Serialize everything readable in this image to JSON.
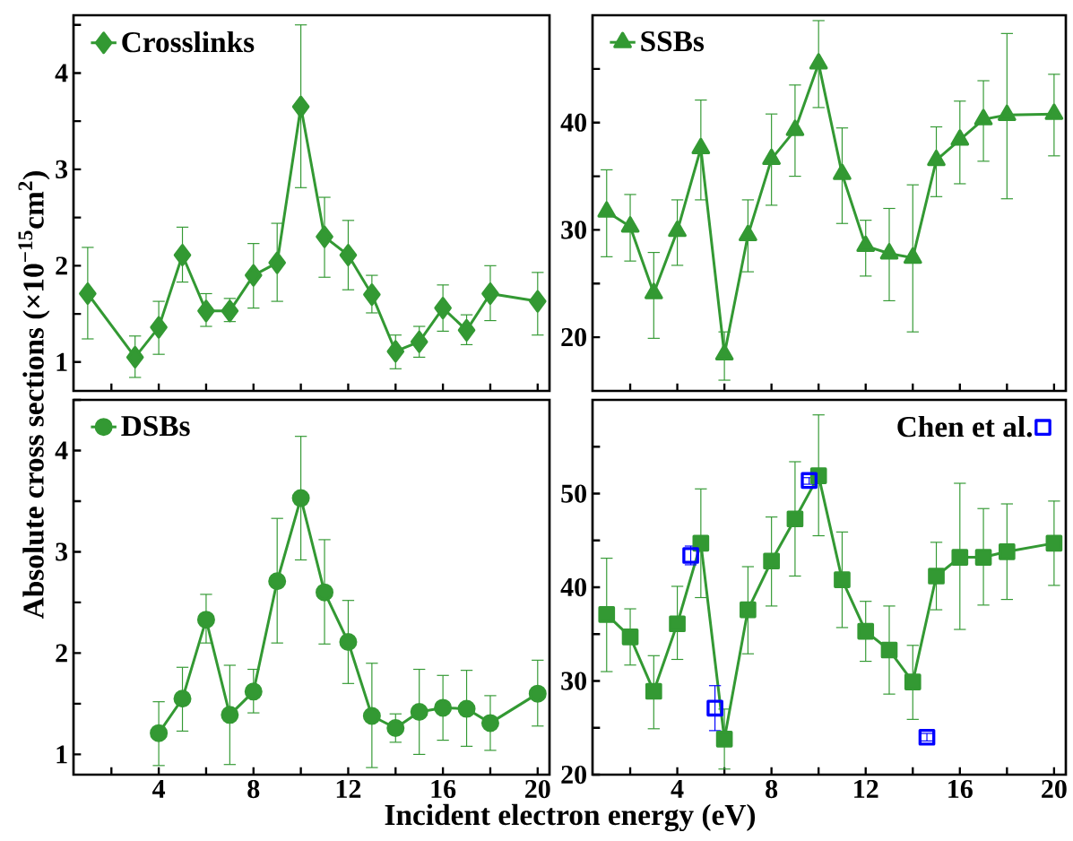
{
  "chart_data": [
    {
      "type": "line",
      "ylabel": "Absolute cross sections (×10$^{−15}$cm$^{2}$)",
      "xlim": [
        0.4,
        20.5
      ],
      "xticks": [
        {
          "value": 2,
          "label": null
        },
        4,
        {
          "value": 6,
          "label": null
        },
        8,
        {
          "value": 10,
          "label": null
        },
        12,
        {
          "value": 14,
          "label": null
        },
        16,
        {
          "value": 18,
          "label": null
        },
        20
      ],
      "ylim": [
        0.7,
        4.6
      ],
      "yticks": [
        1,
        {
          "value": 1.5,
          "label": null
        },
        2,
        {
          "value": 2.5,
          "label": null
        },
        3,
        {
          "value": 3.5,
          "label": null
        },
        4,
        {
          "value": 4.5,
          "label": null
        }
      ],
      "tick_labels": "y",
      "legend": "top left",
      "marker": "diamond",
      "line_style": "solid",
      "series": [
        {
          "name": "Crosslinks",
          "color": "#339933",
          "x": [
            1,
            3,
            4,
            5,
            6,
            7,
            8,
            9,
            10,
            11,
            12,
            13,
            14,
            15,
            16,
            17,
            18,
            20
          ],
          "values": [
            1.71,
            1.05,
            1.36,
            2.11,
            1.53,
            1.53,
            1.9,
            2.03,
            3.65,
            2.3,
            2.11,
            1.7,
            1.11,
            1.21,
            1.56,
            1.33,
            1.71,
            1.63
          ],
          "errors": [
            [
              1.24,
              2.19
            ],
            [
              0.84,
              1.27
            ],
            [
              1.08,
              1.63
            ],
            [
              1.83,
              2.4
            ],
            [
              1.37,
              1.71
            ],
            [
              1.42,
              1.66
            ],
            [
              1.56,
              2.23
            ],
            [
              1.63,
              2.44
            ],
            [
              2.81,
              4.5
            ],
            [
              1.88,
              2.71
            ],
            [
              1.75,
              2.47
            ],
            [
              1.51,
              1.9
            ],
            [
              0.93,
              1.28
            ],
            [
              1.05,
              1.37
            ],
            [
              1.32,
              1.8
            ],
            [
              1.18,
              1.49
            ],
            [
              1.43,
              2.0
            ],
            [
              1.28,
              1.93
            ]
          ]
        }
      ]
    },
    {
      "type": "line",
      "xlim": [
        0.4,
        20.5
      ],
      "xticks": [
        {
          "value": 2,
          "label": null
        },
        4,
        {
          "value": 6,
          "label": null
        },
        8,
        {
          "value": 10,
          "label": null
        },
        12,
        {
          "value": 14,
          "label": null
        },
        16,
        {
          "value": 18,
          "label": null
        },
        20
      ],
      "ylim": [
        15,
        50
      ],
      "yticks": [
        20,
        {
          "value": 25,
          "label": null
        },
        30,
        {
          "value": 35,
          "label": null
        },
        40,
        {
          "value": 45,
          "label": null
        }
      ],
      "tick_labels": "y",
      "legend": "top left",
      "marker": "triangle",
      "line_style": "solid",
      "series": [
        {
          "name": "SSBs",
          "color": "#339933",
          "x": [
            1,
            2,
            3,
            4,
            5,
            6,
            7,
            8,
            9,
            10,
            11,
            12,
            13,
            14,
            15,
            16,
            17,
            18,
            20
          ],
          "values": [
            31.7,
            30.3,
            24.1,
            29.9,
            37.6,
            18.4,
            29.5,
            36.6,
            39.3,
            45.5,
            35.2,
            28.5,
            27.8,
            27.4,
            36.5,
            38.4,
            40.3,
            40.7,
            40.8
          ],
          "errors": [
            [
              27.5,
              35.6
            ],
            [
              27.1,
              33.3
            ],
            [
              19.9,
              27.9
            ],
            [
              26.7,
              32.8
            ],
            [
              32.8,
              42.1
            ],
            [
              16.0,
              20.5
            ],
            [
              26.1,
              32.8
            ],
            [
              32.3,
              40.8
            ],
            [
              35.0,
              43.5
            ],
            [
              41.4,
              49.5
            ],
            [
              30.6,
              39.5
            ],
            [
              25.7,
              30.9
            ],
            [
              23.4,
              32.0
            ],
            [
              20.5,
              34.2
            ],
            [
              33.1,
              39.6
            ],
            [
              34.3,
              42.0
            ],
            [
              36.4,
              43.9
            ],
            [
              32.9,
              48.3
            ],
            [
              36.9,
              44.5
            ]
          ]
        }
      ]
    },
    {
      "type": "line",
      "xlabel": "Incident electron energy (eV)",
      "xlim": [
        0.4,
        20.5
      ],
      "xticks": [
        {
          "value": 2,
          "label": null
        },
        4,
        {
          "value": 6,
          "label": null
        },
        8,
        {
          "value": 10,
          "label": null
        },
        12,
        {
          "value": 14,
          "label": null
        },
        16,
        {
          "value": 18,
          "label": null
        },
        20
      ],
      "ylim": [
        0.8,
        4.5
      ],
      "yticks": [
        1,
        {
          "value": 1.5,
          "label": null
        },
        2,
        {
          "value": 2.5,
          "label": null
        },
        3,
        {
          "value": 3.5,
          "label": null
        },
        4,
        {
          "value": 4.5,
          "label": null
        }
      ],
      "legend": "top left",
      "marker": "circle",
      "line_style": "solid",
      "series": [
        {
          "name": "DSBs",
          "color": "#339933",
          "x": [
            4,
            5,
            6,
            7,
            8,
            9,
            10,
            11,
            12,
            13,
            14,
            15,
            16,
            17,
            18,
            20
          ],
          "values": [
            1.21,
            1.55,
            2.33,
            1.39,
            1.62,
            2.71,
            3.53,
            2.6,
            2.11,
            1.38,
            1.26,
            1.42,
            1.46,
            1.45,
            1.31,
            1.6
          ],
          "errors": [
            [
              0.89,
              1.52
            ],
            [
              1.23,
              1.86
            ],
            [
              2.1,
              2.58
            ],
            [
              0.9,
              1.88
            ],
            [
              1.41,
              1.84
            ],
            [
              2.1,
              3.33
            ],
            [
              2.92,
              4.14
            ],
            [
              2.09,
              3.12
            ],
            [
              1.7,
              2.52
            ],
            [
              0.87,
              1.9
            ],
            [
              1.12,
              1.4
            ],
            [
              1.0,
              1.84
            ],
            [
              1.14,
              1.78
            ],
            [
              1.08,
              1.83
            ],
            [
              1.04,
              1.58
            ],
            [
              1.28,
              1.93
            ]
          ]
        }
      ]
    },
    {
      "type": "line",
      "xlim": [
        0.4,
        20.5
      ],
      "xticks": [
        {
          "value": 2,
          "label": null
        },
        4,
        {
          "value": 6,
          "label": null
        },
        8,
        {
          "value": 10,
          "label": null
        },
        12,
        {
          "value": 14,
          "label": null
        },
        16,
        {
          "value": 18,
          "label": null
        },
        20
      ],
      "ylim": [
        20,
        60
      ],
      "yticks": [
        20,
        {
          "value": 25,
          "label": null
        },
        30,
        {
          "value": 35,
          "label": null
        },
        40,
        {
          "value": 45,
          "label": null
        },
        50,
        {
          "value": 55,
          "label": null
        }
      ],
      "legend": "top right",
      "marker": "square",
      "line_style": "solid",
      "series": [
        {
          "color": "#339933",
          "x": [
            1,
            2,
            3,
            4,
            5,
            6,
            7,
            8,
            9,
            10,
            11,
            12,
            13,
            14,
            15,
            16,
            17,
            18,
            20
          ],
          "values": [
            37.1,
            34.7,
            28.9,
            36.1,
            44.7,
            23.8,
            37.6,
            42.8,
            47.3,
            51.9,
            40.8,
            35.3,
            33.3,
            29.9,
            41.2,
            43.2,
            43.2,
            43.8,
            44.7
          ],
          "errors": [
            [
              31.0,
              43.1
            ],
            [
              31.7,
              37.7
            ],
            [
              24.9,
              32.7
            ],
            [
              32.3,
              40.1
            ],
            [
              38.9,
              50.5
            ],
            [
              20.6,
              27.0
            ],
            [
              32.9,
              42.2
            ],
            [
              38.0,
              47.5
            ],
            [
              41.2,
              53.4
            ],
            [
              45.5,
              58.4
            ],
            [
              35.7,
              45.9
            ],
            [
              32.1,
              38.5
            ],
            [
              28.6,
              38.0
            ],
            [
              25.9,
              33.8
            ],
            [
              37.6,
              44.8
            ],
            [
              35.5,
              51.1
            ],
            [
              38.1,
              48.4
            ],
            [
              38.7,
              48.9
            ],
            [
              40.2,
              49.2
            ]
          ]
        },
        {
          "type": "scatter",
          "name": "Chen et al.",
          "color": "#0000ff",
          "marker": "square",
          "x": [
            4.57,
            5.6,
            9.6,
            14.6
          ],
          "values": [
            43.4,
            27.1,
            51.4,
            24.0
          ],
          "errors": [
            [
              42.4,
              44.4
            ],
            [
              24.7,
              29.5
            ],
            [
              51.0,
              51.7
            ],
            [
              23.6,
              24.4
            ]
          ]
        }
      ]
    }
  ]
}
